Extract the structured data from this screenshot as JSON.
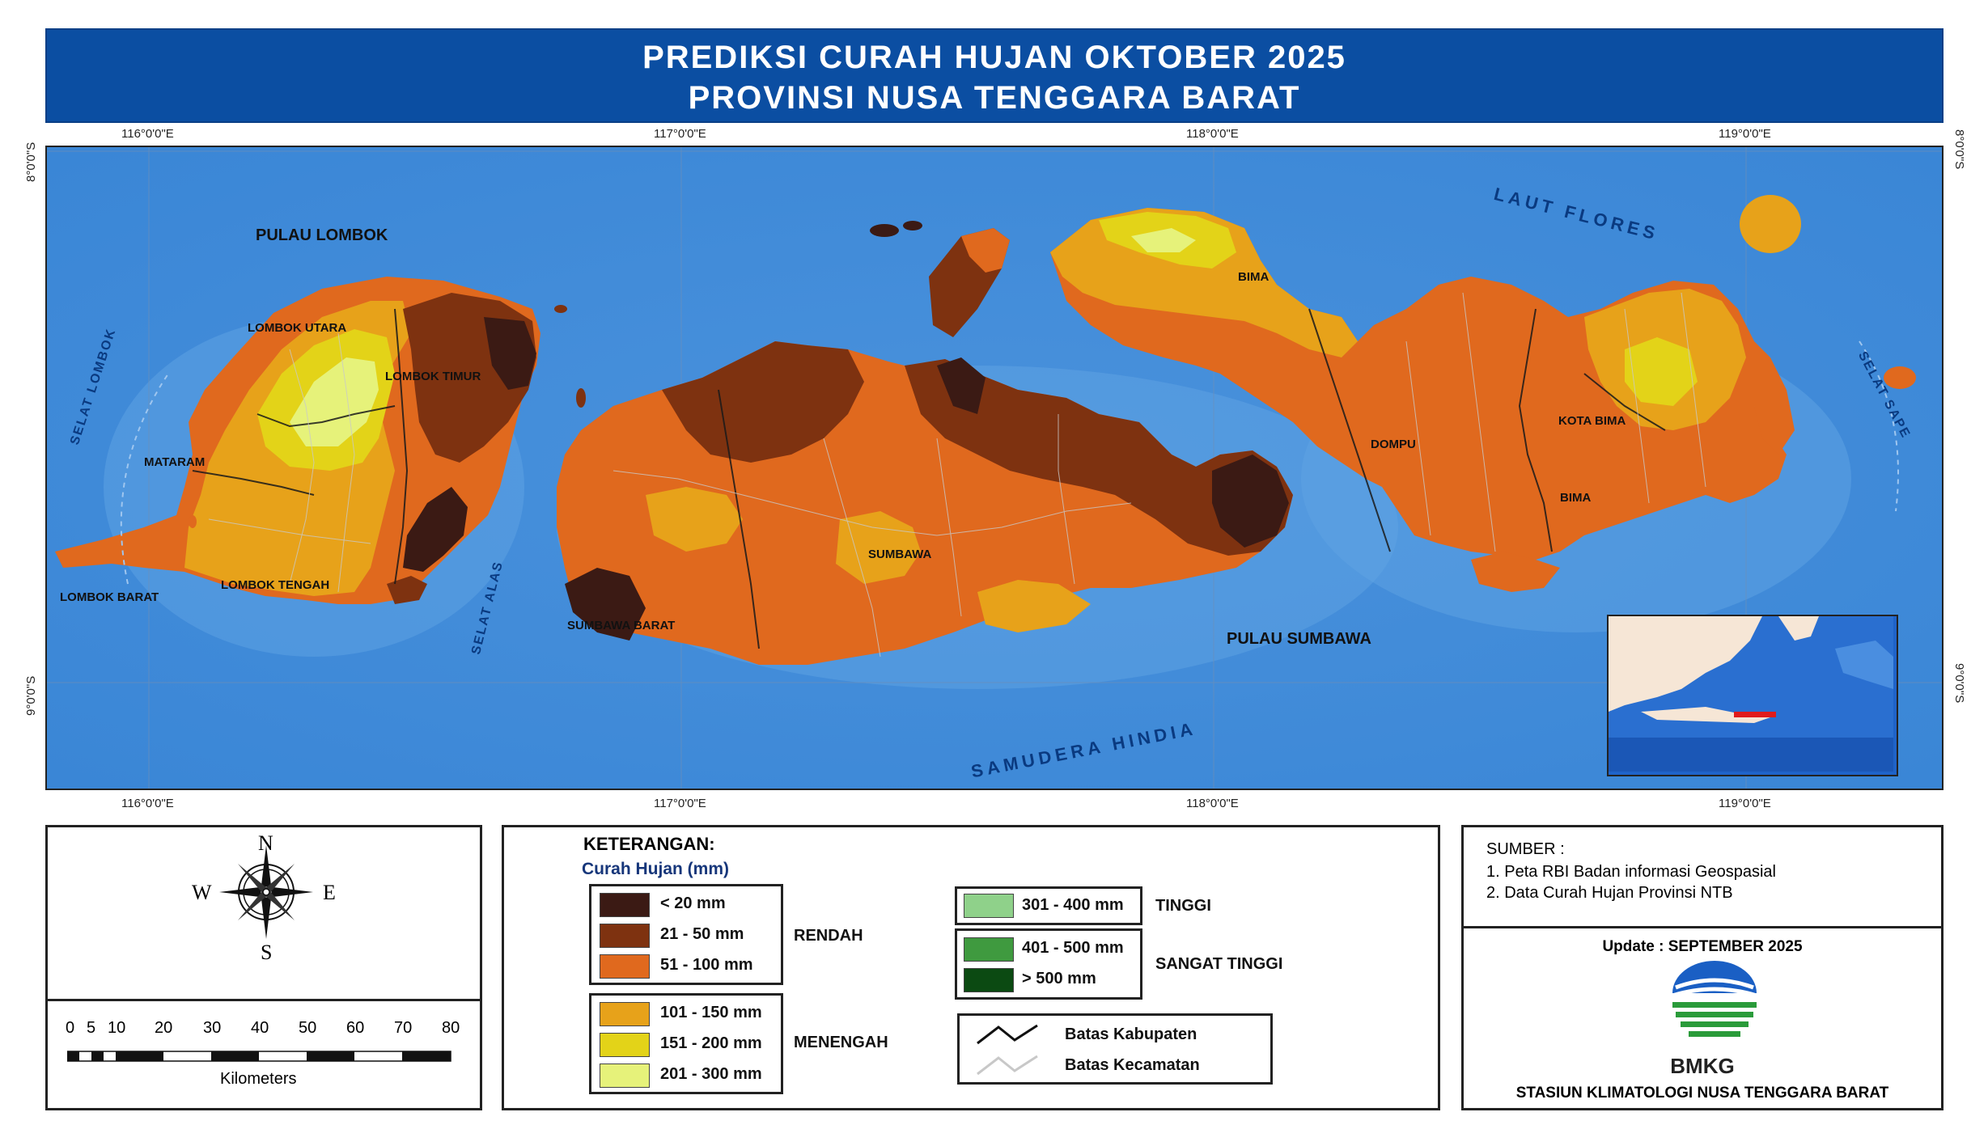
{
  "title": {
    "line1": "PREDIKSI CURAH HUJAN OKTOBER 2025",
    "line2": "PROVINSI NUSA TENGGARA BARAT"
  },
  "map": {
    "grid": {
      "lon_labels": [
        "116°0'0\"E",
        "117°0'0\"E",
        "118°0'0\"E",
        "119°0'0\"E"
      ],
      "lat_labels": [
        "8°0'0\"S",
        "9°0'0\"S"
      ]
    },
    "place_labels": {
      "pulau_lombok": "PULAU LOMBOK",
      "lombok_utara": "LOMBOK UTARA",
      "lombok_timur": "LOMBOK TIMUR",
      "mataram": "MATARAM",
      "lombok_tengah": "LOMBOK TENGAH",
      "lombok_barat": "LOMBOK BARAT",
      "sumbawa_barat": "SUMBAWA BARAT",
      "sumbawa": "SUMBAWA",
      "pulau_sumbawa": "PULAU SUMBAWA",
      "bima_utara": "BIMA",
      "dompu": "DOMPU",
      "kota_bima": "KOTA BIMA",
      "bima": "BIMA"
    },
    "water_labels": {
      "laut_flores": "LAUT FLORES",
      "samudera_hindia": "SAMUDERA HINDIA",
      "selat_lombok": "SELAT LOMBOK",
      "selat_alas": "SELAT ALAS",
      "selat_sape": "SELAT SAPE"
    },
    "colors": {
      "sea": "#3a86d6",
      "sea_light": "#6aa9e6",
      "c_lt20": "#3b1a14",
      "c_21_50": "#7e3210",
      "c_51_100": "#e0691e",
      "c_101_150": "#e7a21a",
      "c_151_200": "#e3d318",
      "c_201_300": "#e6f27a"
    }
  },
  "compass": {
    "n": "N",
    "s": "S",
    "e": "E",
    "w": "W"
  },
  "scale": {
    "ticks": [
      "0",
      "5",
      "10",
      "20",
      "30",
      "40",
      "50",
      "60",
      "70",
      "80"
    ],
    "unit": "Kilometers"
  },
  "legend": {
    "heading": "KETERANGAN:",
    "subheading": "Curah Hujan (mm)",
    "classes": [
      {
        "label": "< 20 mm",
        "color": "#3b1a14"
      },
      {
        "label": "21 - 50 mm",
        "color": "#7e3210"
      },
      {
        "label": "51 - 100 mm",
        "color": "#e0691e"
      },
      {
        "label": "101 - 150 mm",
        "color": "#e7a21a"
      },
      {
        "label": "151 - 200 mm",
        "color": "#e3d318"
      },
      {
        "label": "201 - 300 mm",
        "color": "#e6f27a"
      },
      {
        "label": "301 - 400 mm",
        "color": "#8fd18a"
      },
      {
        "label": "401 - 500 mm",
        "color": "#3f9a3f"
      },
      {
        "label": "> 500 mm",
        "color": "#0b4a12"
      }
    ],
    "categories": {
      "rendah": "RENDAH",
      "menengah": "MENENGAH",
      "tinggi": "TINGGI",
      "sangat_tinggi": "SANGAT TINGGI"
    },
    "boundaries": {
      "kabupaten": "Batas Kabupaten",
      "kecamatan": "Batas Kecamatan"
    }
  },
  "source": {
    "heading": "SUMBER :",
    "items": [
      "1. Peta RBI Badan informasi Geospasial",
      "2. Data Curah Hujan Provinsi NTB"
    ],
    "update": "Update : SEPTEMBER 2025",
    "org_short": "BMKG",
    "org_full": "STASIUN KLIMATOLOGI NUSA TENGGARA BARAT"
  }
}
